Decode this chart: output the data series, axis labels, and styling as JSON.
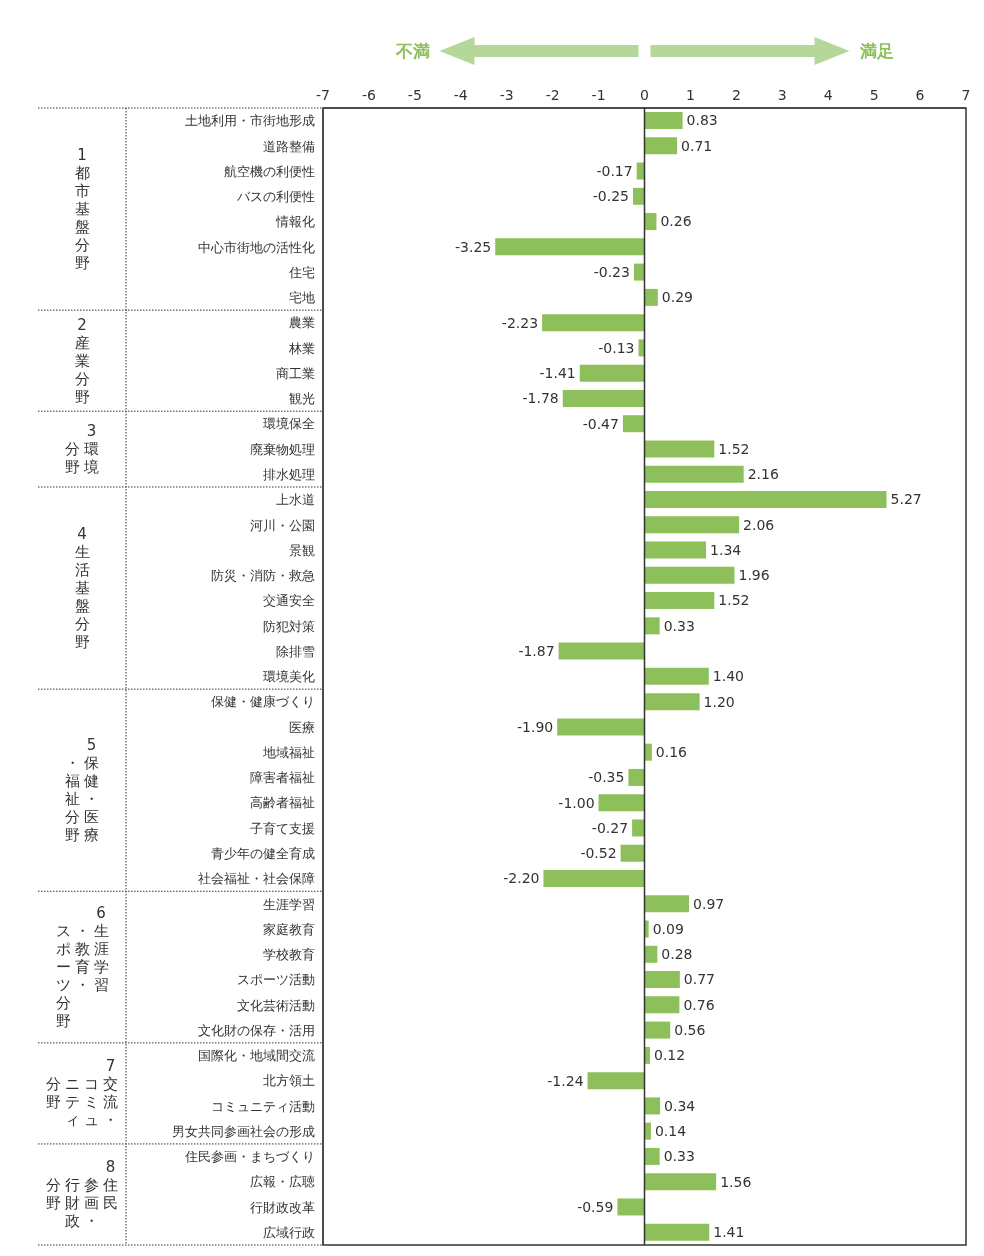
{
  "chart_data": {
    "type": "bar",
    "orientation": "horizontal",
    "categories": [
      "土地利用・市街地形成",
      "道路整備",
      "航空機の利便性",
      "バスの利便性",
      "情報化",
      "中心市街地の活性化",
      "住宅",
      "宅地",
      "農業",
      "林業",
      "商工業",
      "観光",
      "環境保全",
      "廃棄物処理",
      "排水処理",
      "上水道",
      "河川・公園",
      "景観",
      "防災・消防・救急",
      "交通安全",
      "防犯対策",
      "除排雪",
      "環境美化",
      "保健・健康づくり",
      "医療",
      "地域福祉",
      "障害者福祉",
      "高齢者福祉",
      "子育て支援",
      "青少年の健全育成",
      "社会福祉・社会保障",
      "生涯学習",
      "家庭教育",
      "学校教育",
      "スポーツ活動",
      "文化芸術活動",
      "文化財の保存・活用",
      "国際化・地域間交流",
      "北方領土",
      "コミュニティ活動",
      "男女共同参画社会の形成",
      "住民参画・まちづくり",
      "広報・広聴",
      "行財政改革",
      "広域行政"
    ],
    "values": [
      0.83,
      0.71,
      -0.17,
      -0.25,
      0.26,
      -3.25,
      -0.23,
      0.29,
      -2.23,
      -0.13,
      -1.41,
      -1.78,
      -0.47,
      1.52,
      2.16,
      5.27,
      2.06,
      1.34,
      1.96,
      1.52,
      0.33,
      -1.87,
      1.4,
      1.2,
      -1.9,
      0.16,
      -0.35,
      -1.0,
      -0.27,
      -0.52,
      -2.2,
      0.97,
      0.09,
      0.28,
      0.77,
      0.76,
      0.56,
      0.12,
      -1.24,
      0.34,
      0.14,
      0.33,
      1.56,
      -0.59,
      1.41
    ],
    "value_labels": [
      "0.83",
      "0.71",
      "-0.17",
      "-0.25",
      "0.26",
      "-3.25",
      "-0.23",
      "0.29",
      "-2.23",
      "-0.13",
      "-1.41",
      "-1.78",
      "-0.47",
      "1.52",
      "2.16",
      "5.27",
      "2.06",
      "1.34",
      "1.96",
      "1.52",
      "0.33",
      "-1.87",
      "1.40",
      "1.20",
      "-1.90",
      "0.16",
      "-0.35",
      "-1.00",
      "-0.27",
      "-0.52",
      "-2.20",
      "0.97",
      "0.09",
      "0.28",
      "0.77",
      "0.76",
      "0.56",
      "0.12",
      "-1.24",
      "0.34",
      "0.14",
      "0.33",
      "1.56",
      "-0.59",
      "1.41"
    ],
    "color": "#8dc05a",
    "xlim": [
      -7,
      7
    ],
    "xticks": [
      -7,
      -6,
      -5,
      -4,
      -3,
      -2,
      -1,
      0,
      1,
      2,
      3,
      4,
      5,
      6,
      7
    ],
    "ref_lines": [
      {
        "axis": "x",
        "value": 0,
        "color": "#333333"
      }
    ],
    "annotations": [
      "不満",
      "満足",
      "1都市基盤分野",
      "2産業分野",
      "3環境",
      "分野",
      "4生活基盤分野",
      "5保健・医療",
      "・福祉分野",
      "6生涯学習",
      "・教育・",
      "スポーツ分野",
      "7交流・",
      "コミュ",
      "ニティ",
      "分野",
      "8住民",
      "参画・",
      "行財政",
      "分野"
    ]
  }
}
